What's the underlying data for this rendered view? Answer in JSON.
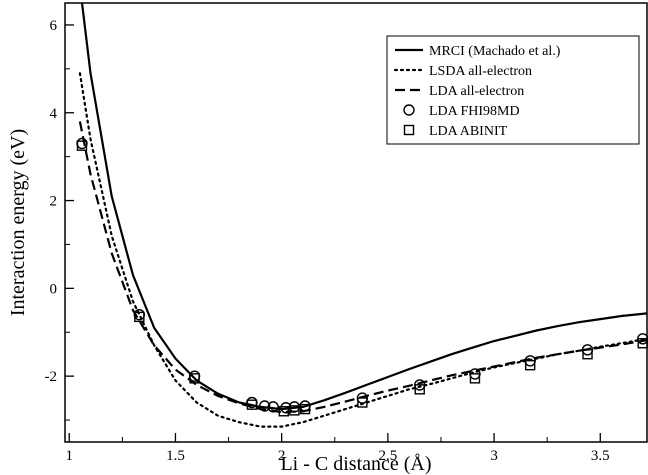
{
  "chart_data": {
    "type": "line",
    "title": "",
    "xlabel": "Li - C distance (Å)",
    "ylabel": "Interaction energy (eV)",
    "xlim": [
      0.98,
      3.72
    ],
    "ylim": [
      -3.5,
      6.5
    ],
    "x_ticks": [
      {
        "value": 1,
        "label": "1"
      },
      {
        "value": 1.5,
        "label": "1.5"
      },
      {
        "value": 2,
        "label": "2"
      },
      {
        "value": 2.5,
        "label": "2.5"
      },
      {
        "value": 3,
        "label": "3"
      },
      {
        "value": 3.5,
        "label": "3.5"
      }
    ],
    "y_ticks": [
      {
        "value": 6,
        "label": "6"
      },
      {
        "value": 4,
        "label": "4"
      },
      {
        "value": 2,
        "label": "2"
      },
      {
        "value": 0,
        "label": "0"
      },
      {
        "value": -2,
        "label": "-2"
      }
    ],
    "grid": false,
    "legend_position": "top-right",
    "series": [
      {
        "name": "MRCI (Machado et al.)",
        "style": "solid",
        "marker": "none",
        "x": [
          1.05,
          1.1,
          1.2,
          1.3,
          1.4,
          1.5,
          1.6,
          1.7,
          1.8,
          1.9,
          2.0,
          2.1,
          2.2,
          2.3,
          2.4,
          2.5,
          2.6,
          2.7,
          2.8,
          2.9,
          3.0,
          3.1,
          3.2,
          3.3,
          3.4,
          3.5,
          3.6,
          3.72
        ],
        "y": [
          6.9,
          4.9,
          2.1,
          0.3,
          -0.9,
          -1.6,
          -2.1,
          -2.4,
          -2.6,
          -2.7,
          -2.75,
          -2.7,
          -2.55,
          -2.38,
          -2.2,
          -2.02,
          -1.84,
          -1.67,
          -1.5,
          -1.35,
          -1.2,
          -1.08,
          -0.96,
          -0.86,
          -0.77,
          -0.7,
          -0.63,
          -0.57
        ]
      },
      {
        "name": "LSDA all-electron",
        "style": "dotted",
        "marker": "none",
        "x": [
          1.05,
          1.1,
          1.2,
          1.3,
          1.4,
          1.5,
          1.6,
          1.7,
          1.8,
          1.9,
          2.0,
          2.1,
          2.2,
          2.3,
          2.4,
          2.5,
          2.6,
          2.7,
          2.8,
          2.9,
          3.0,
          3.1,
          3.2,
          3.3,
          3.4,
          3.5,
          3.6,
          3.72
        ],
        "y": [
          4.9,
          3.4,
          1.2,
          -0.3,
          -1.3,
          -2.1,
          -2.6,
          -2.9,
          -3.05,
          -3.15,
          -3.15,
          -3.05,
          -2.9,
          -2.75,
          -2.6,
          -2.45,
          -2.3,
          -2.18,
          -2.05,
          -1.92,
          -1.8,
          -1.7,
          -1.6,
          -1.5,
          -1.42,
          -1.33,
          -1.25,
          -1.15
        ]
      },
      {
        "name": "LDA all-electron",
        "style": "dashed",
        "marker": "none",
        "x": [
          1.05,
          1.1,
          1.2,
          1.3,
          1.4,
          1.5,
          1.6,
          1.7,
          1.8,
          1.9,
          2.0,
          2.1,
          2.2,
          2.3,
          2.4,
          2.5,
          2.6,
          2.7,
          2.8,
          2.9,
          3.0,
          3.1,
          3.2,
          3.3,
          3.4,
          3.5,
          3.6,
          3.72
        ],
        "y": [
          3.8,
          2.6,
          0.8,
          -0.5,
          -1.3,
          -1.85,
          -2.2,
          -2.45,
          -2.62,
          -2.75,
          -2.82,
          -2.8,
          -2.7,
          -2.58,
          -2.45,
          -2.33,
          -2.22,
          -2.1,
          -1.98,
          -1.88,
          -1.78,
          -1.68,
          -1.58,
          -1.5,
          -1.42,
          -1.35,
          -1.28,
          -1.18
        ]
      },
      {
        "name": "LDA FHI98MD",
        "style": "none",
        "marker": "circle",
        "x": [
          1.06,
          1.33,
          1.59,
          1.86,
          1.92,
          1.96,
          2.02,
          2.06,
          2.11,
          2.38,
          2.65,
          2.91,
          3.17,
          3.44,
          3.7
        ],
        "y": [
          3.3,
          -0.6,
          -2.0,
          -2.6,
          -2.68,
          -2.7,
          -2.72,
          -2.7,
          -2.68,
          -2.5,
          -2.2,
          -1.95,
          -1.65,
          -1.4,
          -1.15
        ]
      },
      {
        "name": "LDA ABINIT",
        "style": "none",
        "marker": "square",
        "x": [
          1.06,
          1.33,
          1.59,
          1.86,
          2.01,
          2.06,
          2.11,
          2.38,
          2.65,
          2.91,
          3.17,
          3.44,
          3.7
        ],
        "y": [
          3.25,
          -0.65,
          -2.05,
          -2.65,
          -2.8,
          -2.78,
          -2.75,
          -2.6,
          -2.3,
          -2.05,
          -1.75,
          -1.5,
          -1.25
        ]
      }
    ]
  }
}
